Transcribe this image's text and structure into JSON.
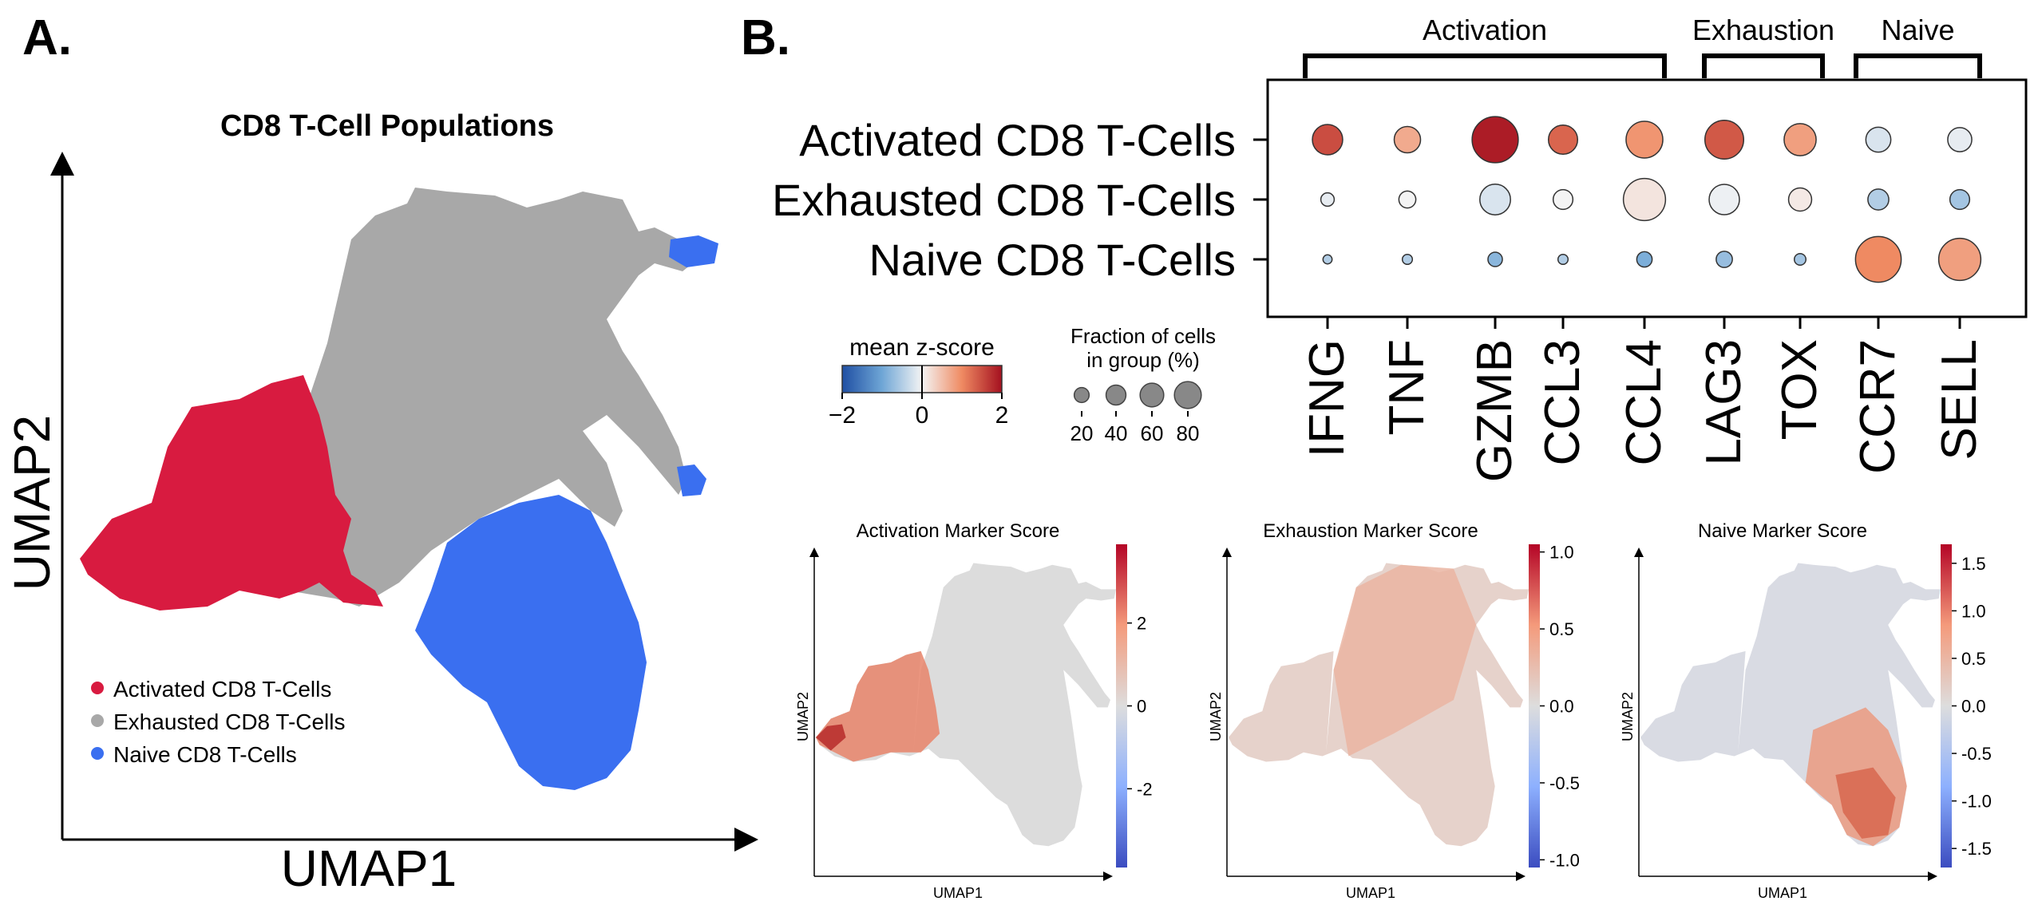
{
  "panels": {
    "a_label": "A.",
    "b_label": "B."
  },
  "chart_data": [
    {
      "type": "scatter",
      "id": "umap-populations",
      "title": "CD8 T-Cell Populations",
      "xlabel": "UMAP1",
      "ylabel": "UMAP2",
      "legend": {
        "placement": "bottom-left",
        "entries": [
          {
            "label": "Activated CD8 T-Cells",
            "color": "#d81b40"
          },
          {
            "label": "Exhausted CD8 T-Cells",
            "color": "#a8a8a8"
          },
          {
            "label": "Naive CD8 T-Cells",
            "color": "#3a6ff0"
          }
        ]
      }
    },
    {
      "type": "dotplot",
      "id": "marker-dotplot",
      "groups": [
        {
          "label": "Activation",
          "genes": [
            "IFNG",
            "TNF",
            "GZMB",
            "CCL3",
            "CCL4"
          ]
        },
        {
          "label": "Exhaustion",
          "genes": [
            "LAG3",
            "TOX"
          ]
        },
        {
          "label": "Naive",
          "genes": [
            "CCR7",
            "SELL"
          ]
        }
      ],
      "genes": [
        "IFNG",
        "TNF",
        "GZMB",
        "CCL3",
        "CCL4",
        "LAG3",
        "TOX",
        "CCR7",
        "SELL"
      ],
      "rows": [
        {
          "label": "Activated CD8 T-Cells",
          "fraction": [
            35,
            25,
            92,
            32,
            55,
            62,
            40,
            22,
            20
          ],
          "zscore": [
            1.5,
            0.7,
            1.9,
            1.3,
            0.9,
            1.4,
            0.8,
            -0.2,
            -0.1
          ]
        },
        {
          "label": "Exhausted CD8 T-Cells",
          "fraction": [
            4,
            8,
            36,
            12,
            75,
            35,
            18,
            14,
            12
          ],
          "zscore": [
            -0.1,
            0.0,
            -0.2,
            0.0,
            0.15,
            -0.05,
            0.1,
            -0.5,
            -0.6
          ]
        },
        {
          "label": "Naive CD8 T-Cells",
          "fraction": [
            1,
            1.5,
            5,
            1.5,
            6,
            7,
            2.5,
            90,
            75
          ],
          "zscore": [
            -0.5,
            -0.5,
            -0.8,
            -0.5,
            -0.9,
            -0.7,
            -0.6,
            1.0,
            0.8
          ]
        }
      ],
      "color_legend": {
        "title": "mean z-score",
        "ticks": [
          "−2",
          "0",
          "2"
        ],
        "range": [
          -2,
          2
        ]
      },
      "size_legend": {
        "title_line1": "Fraction of cells",
        "title_line2": "in group (%)",
        "ticks": [
          20,
          40,
          60,
          80
        ]
      }
    },
    {
      "type": "scatter",
      "id": "activation-score",
      "title": "Activation Marker Score",
      "xlabel": "UMAP1",
      "ylabel": "UMAP2",
      "colorbar": {
        "range": [
          -3.9,
          3.9
        ],
        "ticks": [
          2,
          0,
          -2
        ],
        "tick_labels": [
          "2",
          "0",
          "-2"
        ]
      }
    },
    {
      "type": "scatter",
      "id": "exhaustion-score",
      "title": "Exhaustion Marker Score",
      "xlabel": "UMAP1",
      "ylabel": "UMAP2",
      "colorbar": {
        "range": [
          -1.05,
          1.05
        ],
        "ticks": [
          1.0,
          0.5,
          0.0,
          -0.5,
          -1.0
        ],
        "tick_labels": [
          "1.0",
          "0.5",
          "0.0",
          "-0.5",
          "-1.0"
        ]
      }
    },
    {
      "type": "scatter",
      "id": "naive-score",
      "title": "Naive Marker Score",
      "xlabel": "UMAP1",
      "ylabel": "UMAP2",
      "colorbar": {
        "range": [
          -1.7,
          1.7
        ],
        "ticks": [
          1.5,
          1.0,
          0.5,
          0.0,
          -0.5,
          -1.0,
          -1.5
        ],
        "tick_labels": [
          "1.5",
          "1.0",
          "0.5",
          "0.0",
          "-0.5",
          "-1.0",
          "-1.5"
        ]
      }
    }
  ]
}
